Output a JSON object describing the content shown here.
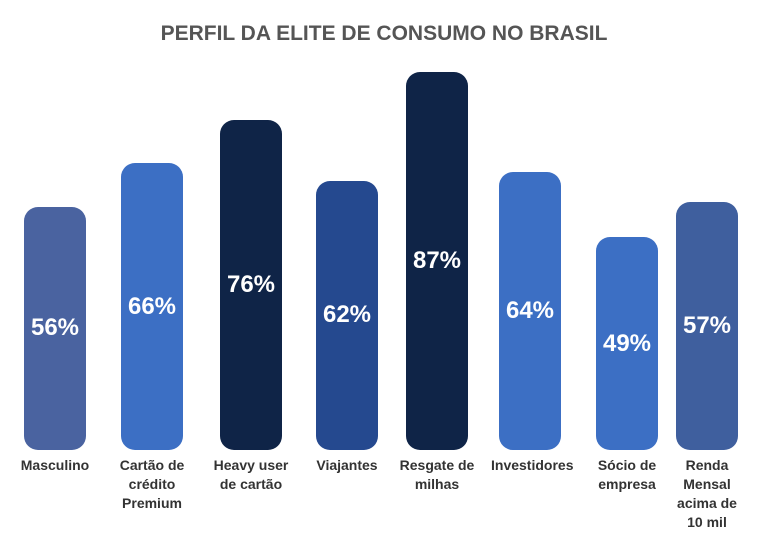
{
  "chart_data": {
    "type": "bar",
    "title": "PERFIL DA ELITE DE CONSUMO NO BRASIL",
    "categories": [
      "Masculino",
      "Cartão de crédito Premium",
      "Heavy user de cartão",
      "Viajantes",
      "Resgate de milhas",
      "Investidores",
      "Sócio de empresa",
      "Renda Mensal acima de 10 mil"
    ],
    "values": [
      56,
      66,
      76,
      62,
      87,
      64,
      49,
      57
    ],
    "value_labels": [
      "56%",
      "66%",
      "76%",
      "62%",
      "87%",
      "64%",
      "49%",
      "57%"
    ],
    "colors": [
      "#4a63a0",
      "#3c6fc4",
      "#0f2447",
      "#25498f",
      "#0f2447",
      "#3c6fc4",
      "#3c6fc4",
      "#3f5f9e"
    ]
  }
}
